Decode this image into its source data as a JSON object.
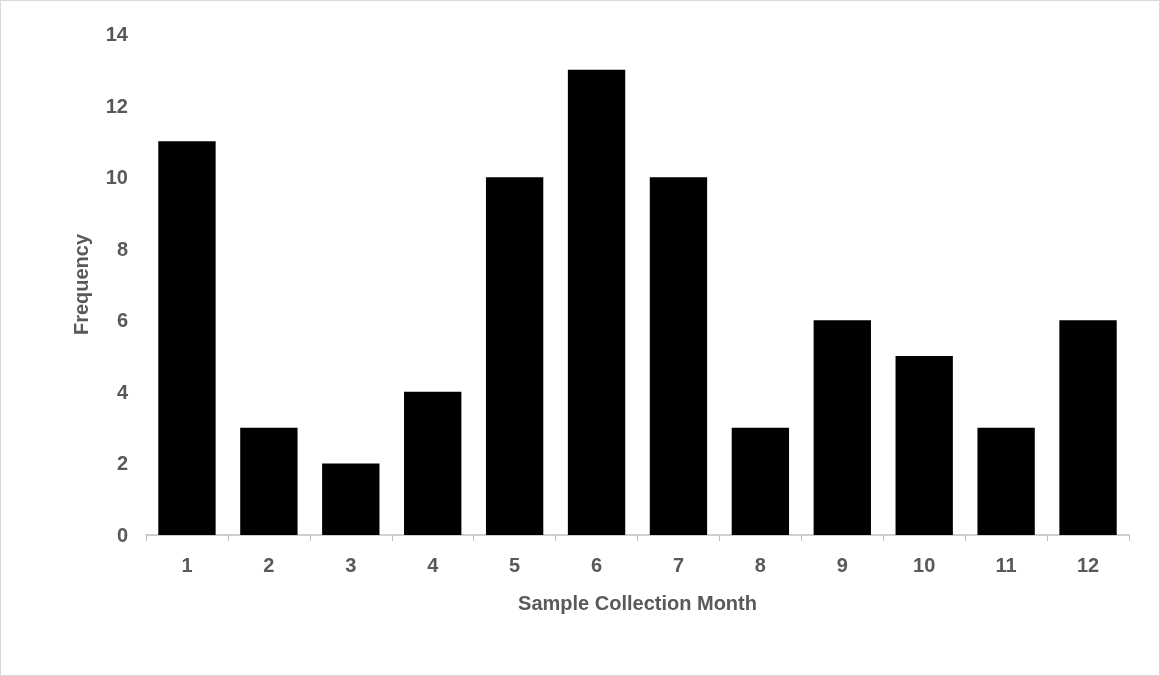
{
  "chart_data": {
    "type": "bar",
    "xlabel": "Sample Collection Month",
    "ylabel": "Frequency",
    "categories": [
      "1",
      "2",
      "3",
      "4",
      "5",
      "6",
      "7",
      "8",
      "9",
      "10",
      "11",
      "12"
    ],
    "values": [
      11,
      3,
      2,
      4,
      10,
      13,
      10,
      3,
      6,
      5,
      3,
      6
    ],
    "color": "#000000",
    "ylim": [
      0,
      14
    ],
    "yticks": [
      0,
      2,
      4,
      6,
      8,
      10,
      12,
      14
    ]
  }
}
